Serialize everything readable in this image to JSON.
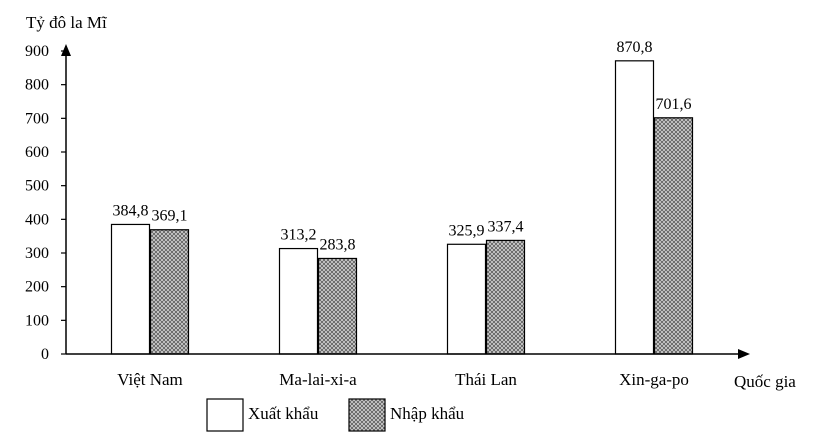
{
  "chart_data": {
    "type": "bar",
    "ylabel": "Tỷ đô la Mĩ",
    "xlabel": "Quốc gia",
    "categories": [
      "Việt Nam",
      "Ma-lai-xi-a",
      "Thái Lan",
      "Xin-ga-po"
    ],
    "series": [
      {
        "name": "Xuất khẩu",
        "values": [
          384.8,
          313.2,
          325.9,
          870.8
        ],
        "labels": [
          "384,8",
          "313,2",
          "325,9",
          "870,8"
        ],
        "fill": "#ffffff"
      },
      {
        "name": "Nhập khẩu",
        "values": [
          369.1,
          283.8,
          337.4,
          701.6
        ],
        "labels": [
          "369,1",
          "283,8",
          "337,4",
          "701,6"
        ],
        "fill": "crosshatch"
      }
    ],
    "ylim": [
      0,
      900
    ],
    "yticks": [
      0,
      100,
      200,
      300,
      400,
      500,
      600,
      700,
      800,
      900
    ],
    "grid": false,
    "legend_position": "bottom"
  }
}
